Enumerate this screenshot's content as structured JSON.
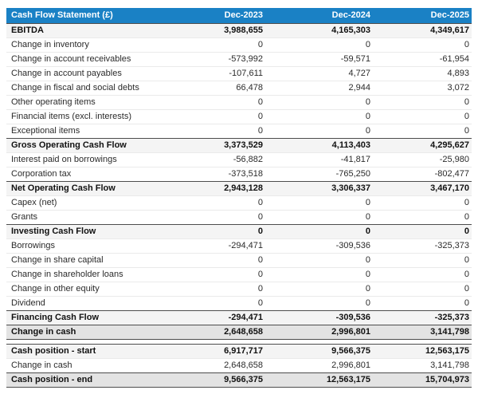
{
  "table": {
    "title": "Cash Flow Statement (£)",
    "columns": [
      "Dec-2023",
      "Dec-2024",
      "Dec-2025"
    ]
  },
  "rows": [
    {
      "label": "EBITDA",
      "values": [
        "3,988,655",
        "4,165,303",
        "4,349,617"
      ],
      "style": "subtotal"
    },
    {
      "label": "Change in inventory",
      "values": [
        "0",
        "0",
        "0"
      ],
      "style": "normal"
    },
    {
      "label": "Change in account receivables",
      "values": [
        "-573,992",
        "-59,571",
        "-61,954"
      ],
      "style": "normal"
    },
    {
      "label": "Change in account payables",
      "values": [
        "-107,611",
        "4,727",
        "4,893"
      ],
      "style": "normal"
    },
    {
      "label": "Change in fiscal and social debts",
      "values": [
        "66,478",
        "2,944",
        "3,072"
      ],
      "style": "normal"
    },
    {
      "label": "Other operating items",
      "values": [
        "0",
        "0",
        "0"
      ],
      "style": "normal"
    },
    {
      "label": "Financial items (excl. interests)",
      "values": [
        "0",
        "0",
        "0"
      ],
      "style": "normal"
    },
    {
      "label": "Exceptional items",
      "values": [
        "0",
        "0",
        "0"
      ],
      "style": "normal"
    },
    {
      "label": "Gross Operating Cash Flow",
      "values": [
        "3,373,529",
        "4,113,403",
        "4,295,627"
      ],
      "style": "subtotal"
    },
    {
      "label": "Interest paid on borrowings",
      "values": [
        "-56,882",
        "-41,817",
        "-25,980"
      ],
      "style": "normal"
    },
    {
      "label": "Corporation tax",
      "values": [
        "-373,518",
        "-765,250",
        "-802,477"
      ],
      "style": "normal"
    },
    {
      "label": "Net Operating Cash Flow",
      "values": [
        "2,943,128",
        "3,306,337",
        "3,467,170"
      ],
      "style": "subtotal"
    },
    {
      "label": "Capex (net)",
      "values": [
        "0",
        "0",
        "0"
      ],
      "style": "normal"
    },
    {
      "label": "Grants",
      "values": [
        "0",
        "0",
        "0"
      ],
      "style": "normal"
    },
    {
      "label": "Investing Cash Flow",
      "values": [
        "0",
        "0",
        "0"
      ],
      "style": "subtotal"
    },
    {
      "label": "Borrowings",
      "values": [
        "-294,471",
        "-309,536",
        "-325,373"
      ],
      "style": "normal"
    },
    {
      "label": "Change in share capital",
      "values": [
        "0",
        "0",
        "0"
      ],
      "style": "normal"
    },
    {
      "label": "Change in shareholder loans",
      "values": [
        "0",
        "0",
        "0"
      ],
      "style": "normal"
    },
    {
      "label": "Change in other equity",
      "values": [
        "0",
        "0",
        "0"
      ],
      "style": "normal"
    },
    {
      "label": "Dividend",
      "values": [
        "0",
        "0",
        "0"
      ],
      "style": "normal"
    },
    {
      "label": "Financing Cash Flow",
      "values": [
        "-294,471",
        "-309,536",
        "-325,373"
      ],
      "style": "subtotal"
    },
    {
      "label": "Change in cash",
      "values": [
        "2,648,658",
        "2,996,801",
        "3,141,798"
      ],
      "style": "total"
    },
    {
      "label": "",
      "values": [],
      "style": "spacer"
    },
    {
      "label": "Cash position - start",
      "values": [
        "6,917,717",
        "9,566,375",
        "12,563,175"
      ],
      "style": "subtotal"
    },
    {
      "label": "Change in cash",
      "values": [
        "2,648,658",
        "2,996,801",
        "3,141,798"
      ],
      "style": "normal"
    },
    {
      "label": "Cash position - end",
      "values": [
        "9,566,375",
        "12,563,175",
        "15,704,973"
      ],
      "style": "total"
    }
  ],
  "colors": {
    "header_bg": "#1a81c5",
    "header_text": "#ffffff",
    "subtotal_bg": "#f4f4f4",
    "total_bg": "#e3e3e3",
    "dark_border": "#4d4d4d",
    "light_border": "#eaeaea"
  }
}
